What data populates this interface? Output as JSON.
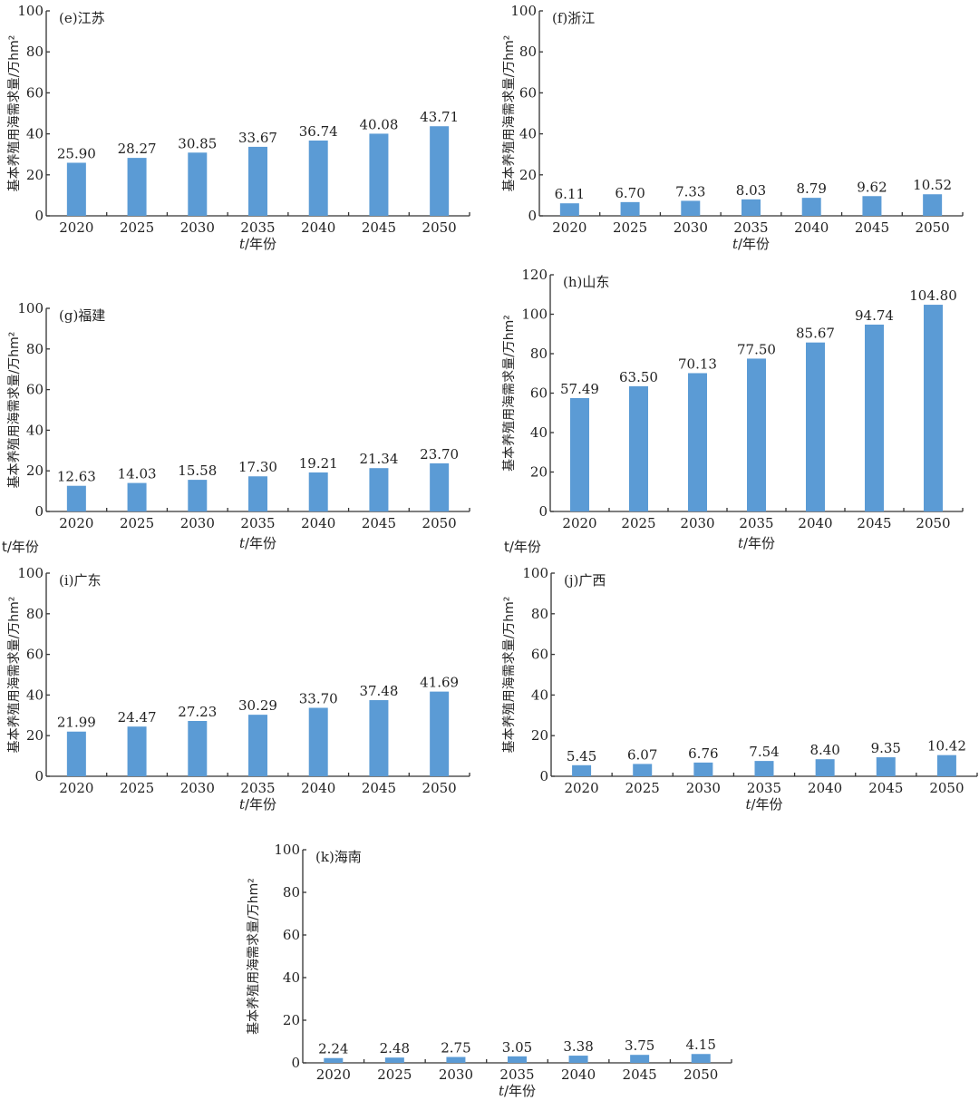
{
  "figure": {
    "bar_color": "#5b9bd5",
    "axis_color": "#333333",
    "stray_xlabels": [
      "t/年份",
      "t/年份"
    ]
  },
  "chart_data": [
    {
      "type": "bar",
      "title": "(e)江苏",
      "xlabel": "t/年份",
      "ylabel": "基本养殖用海需求量/万hm²",
      "categories": [
        "2020",
        "2025",
        "2030",
        "2035",
        "2040",
        "2045",
        "2050"
      ],
      "values": [
        25.9,
        28.27,
        30.85,
        33.67,
        36.74,
        40.08,
        43.71
      ],
      "value_labels": [
        "25.90",
        "28.27",
        "30.85",
        "33.67",
        "36.74",
        "40.08",
        "43.71"
      ],
      "ylim": [
        0,
        100
      ],
      "yticks": [
        "0",
        "20",
        "40",
        "60",
        "80",
        "100"
      ],
      "grid": false,
      "legend": "none"
    },
    {
      "type": "bar",
      "title": "(f)浙江",
      "xlabel": "t/年份",
      "ylabel": "基本养殖用海需求量/万hm²",
      "categories": [
        "2020",
        "2025",
        "2030",
        "2035",
        "2040",
        "2045",
        "2050"
      ],
      "values": [
        6.11,
        6.7,
        7.33,
        8.03,
        8.79,
        9.62,
        10.52
      ],
      "value_labels": [
        "6.11",
        "6.70",
        "7.33",
        "8.03",
        "8.79",
        "9.62",
        "10.52"
      ],
      "ylim": [
        0,
        100
      ],
      "yticks": [
        "0",
        "20",
        "40",
        "60",
        "80",
        "100"
      ],
      "grid": false,
      "legend": "none"
    },
    {
      "type": "bar",
      "title": "(g)福建",
      "xlabel": "t/年份",
      "ylabel": "基本养殖用海需求量/万hm²",
      "categories": [
        "2020",
        "2025",
        "2030",
        "2035",
        "2040",
        "2045",
        "2050"
      ],
      "values": [
        12.63,
        14.03,
        15.58,
        17.3,
        19.21,
        21.34,
        23.7
      ],
      "value_labels": [
        "12.63",
        "14.03",
        "15.58",
        "17.30",
        "19.21",
        "21.34",
        "23.70"
      ],
      "ylim": [
        0,
        100
      ],
      "yticks": [
        "0",
        "20",
        "40",
        "60",
        "80",
        "100"
      ],
      "grid": false,
      "legend": "none"
    },
    {
      "type": "bar",
      "title": "(h)山东",
      "xlabel": "t/年份",
      "ylabel": "基本养殖用海需求量/万hm²",
      "categories": [
        "2020",
        "2025",
        "2030",
        "2035",
        "2040",
        "2045",
        "2050"
      ],
      "values": [
        57.49,
        63.5,
        70.13,
        77.5,
        85.67,
        94.74,
        104.8
      ],
      "value_labels": [
        "57.49",
        "63.50",
        "70.13",
        "77.50",
        "85.67",
        "94.74",
        "104.80"
      ],
      "ylim": [
        0,
        120
      ],
      "yticks": [
        "0",
        "20",
        "40",
        "60",
        "80",
        "100",
        "120"
      ],
      "grid": false,
      "legend": "none"
    },
    {
      "type": "bar",
      "title": "(i)广东",
      "xlabel": "t/年份",
      "ylabel": "基本养殖用海需求量/万hm²",
      "categories": [
        "2020",
        "2025",
        "2030",
        "2035",
        "2040",
        "2045",
        "2050"
      ],
      "values": [
        21.99,
        24.47,
        27.23,
        30.29,
        33.7,
        37.48,
        41.69
      ],
      "value_labels": [
        "21.99",
        "24.47",
        "27.23",
        "30.29",
        "33.70",
        "37.48",
        "41.69"
      ],
      "ylim": [
        0,
        100
      ],
      "yticks": [
        "0",
        "20",
        "40",
        "60",
        "80",
        "100"
      ],
      "grid": false,
      "legend": "none"
    },
    {
      "type": "bar",
      "title": "(j)广西",
      "xlabel": "t/年份",
      "ylabel": "基本养殖用海需求量/万hm²",
      "categories": [
        "2020",
        "2025",
        "2030",
        "2035",
        "2040",
        "2045",
        "2050"
      ],
      "values": [
        5.45,
        6.07,
        6.76,
        7.54,
        8.4,
        9.35,
        10.42
      ],
      "value_labels": [
        "5.45",
        "6.07",
        "6.76",
        "7.54",
        "8.40",
        "9.35",
        "10.42"
      ],
      "ylim": [
        0,
        100
      ],
      "yticks": [
        "0",
        "20",
        "40",
        "60",
        "80",
        "100"
      ],
      "grid": false,
      "legend": "none"
    },
    {
      "type": "bar",
      "title": "(k)海南",
      "xlabel": "t/年份",
      "ylabel": "基本养殖用海需求量/万hm²",
      "categories": [
        "2020",
        "2025",
        "2030",
        "2035",
        "2040",
        "2045",
        "2050"
      ],
      "values": [
        2.24,
        2.48,
        2.75,
        3.05,
        3.38,
        3.75,
        4.15
      ],
      "value_labels": [
        "2.24",
        "2.48",
        "2.75",
        "3.05",
        "3.38",
        "3.75",
        "4.15"
      ],
      "ylim": [
        0,
        100
      ],
      "yticks": [
        "0",
        "20",
        "40",
        "60",
        "80",
        "100"
      ],
      "grid": false,
      "legend": "none"
    }
  ]
}
